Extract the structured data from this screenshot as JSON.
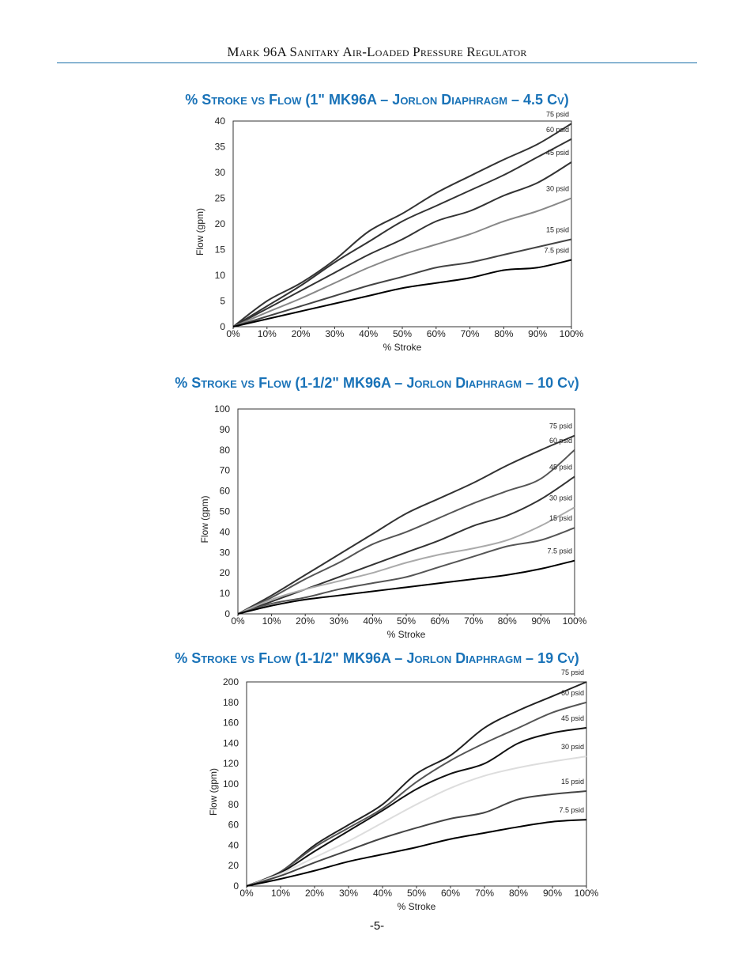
{
  "header": {
    "title": "Mark 96A Sanitary Air-Loaded Pressure Regulator"
  },
  "page_number": "-5-",
  "colors": {
    "accent": "#1a73b8",
    "rule": "#1a6fa8"
  },
  "chart_data": [
    {
      "type": "line",
      "title": "% Stroke vs Flow (1\" MK96A – Jorlon Diaphragm – 4.5 Cv)",
      "xlabel": "% Stroke",
      "ylabel": "Flow (gpm)",
      "xlim": [
        0,
        100
      ],
      "ylim": [
        0,
        40
      ],
      "x_ticks": [
        "0%",
        "10%",
        "20%",
        "30%",
        "40%",
        "50%",
        "60%",
        "70%",
        "80%",
        "90%",
        "100%"
      ],
      "y_ticks": [
        "0",
        "5",
        "10",
        "15",
        "20",
        "25",
        "30",
        "35",
        "40"
      ],
      "grid": false,
      "x": [
        0,
        10,
        20,
        30,
        40,
        50,
        60,
        70,
        80,
        90,
        100
      ],
      "series": [
        {
          "name": "75 psid",
          "color": "#333333",
          "values": [
            0,
            5,
            8.5,
            13,
            18.5,
            22,
            26,
            29.3,
            32.5,
            35.5,
            39.5
          ]
        },
        {
          "name": "60 psid",
          "color": "#333333",
          "values": [
            0,
            4,
            8,
            12.5,
            16.5,
            20.5,
            23.5,
            26.5,
            29.5,
            33,
            36.5
          ]
        },
        {
          "name": "45 psid",
          "color": "#333333",
          "values": [
            0,
            3.5,
            7,
            10.5,
            14,
            17,
            20.5,
            22.5,
            25.5,
            28,
            32
          ]
        },
        {
          "name": "30 psid",
          "color": "#888888",
          "values": [
            0,
            2.8,
            5.5,
            8.5,
            11.5,
            14,
            16,
            18,
            20.5,
            22.5,
            25
          ]
        },
        {
          "name": "15 psid",
          "color": "#444444",
          "values": [
            0,
            2,
            4,
            6,
            8,
            9.7,
            11.5,
            12.5,
            14,
            15.5,
            17
          ]
        },
        {
          "name": "7.5 psid",
          "color": "#000000",
          "values": [
            0,
            1.5,
            3,
            4.5,
            6,
            7.5,
            8.5,
            9.5,
            11,
            11.5,
            13
          ]
        }
      ]
    },
    {
      "type": "line",
      "title": "% Stroke vs Flow (1-1/2\" MK96A – Jorlon Diaphragm – 10 Cv)",
      "xlabel": "% Stroke",
      "ylabel": "Flow (gpm)",
      "xlim": [
        0,
        100
      ],
      "ylim": [
        0,
        100
      ],
      "x_ticks": [
        "0%",
        "10%",
        "20%",
        "30%",
        "40%",
        "50%",
        "60%",
        "70%",
        "80%",
        "90%",
        "100%"
      ],
      "y_ticks": [
        "0",
        "10",
        "20",
        "30",
        "40",
        "50",
        "60",
        "70",
        "80",
        "90",
        "100"
      ],
      "grid": false,
      "x": [
        0,
        10,
        20,
        30,
        40,
        50,
        60,
        70,
        80,
        90,
        100
      ],
      "series": [
        {
          "name": "75 psid",
          "color": "#333333",
          "values": [
            0,
            9,
            19,
            29,
            39,
            49,
            56.5,
            64,
            72.5,
            80,
            87
          ]
        },
        {
          "name": "60 psid",
          "color": "#555555",
          "values": [
            0,
            8,
            17,
            25,
            34,
            40,
            47,
            54,
            60,
            66,
            80
          ]
        },
        {
          "name": "45 psid",
          "color": "#333333",
          "values": [
            0,
            6,
            12,
            18,
            24,
            30,
            36,
            43,
            48,
            56,
            67
          ]
        },
        {
          "name": "30 psid",
          "color": "#aaaaaa",
          "values": [
            0,
            7,
            12,
            16,
            20,
            25,
            29,
            32,
            36,
            43,
            52
          ]
        },
        {
          "name": "15 psid",
          "color": "#555555",
          "values": [
            0,
            5,
            8,
            12,
            15,
            18,
            23,
            28,
            33,
            36,
            42
          ]
        },
        {
          "name": "7.5 psid",
          "color": "#000000",
          "values": [
            0,
            4,
            7,
            9,
            11,
            13,
            15,
            17,
            19,
            22,
            26
          ]
        }
      ]
    },
    {
      "type": "line",
      "title": "% Stroke vs Flow (1-1/2\" MK96A – Jorlon Diaphragm – 19 Cv)",
      "xlabel": "% Stroke",
      "ylabel": "Flow (gpm)",
      "xlim": [
        0,
        100
      ],
      "ylim": [
        0,
        200
      ],
      "x_ticks": [
        "0%",
        "10%",
        "20%",
        "30%",
        "40%",
        "50%",
        "60%",
        "70%",
        "80%",
        "90%",
        "100%"
      ],
      "y_ticks": [
        "0",
        "20",
        "40",
        "60",
        "80",
        "100",
        "120",
        "140",
        "160",
        "180",
        "200"
      ],
      "grid": false,
      "x": [
        0,
        10,
        20,
        30,
        40,
        50,
        60,
        70,
        80,
        90,
        100
      ],
      "series": [
        {
          "name": "75 psid",
          "color": "#222222",
          "values": [
            0,
            14,
            40,
            60,
            80,
            110,
            128,
            155,
            172,
            186,
            200
          ]
        },
        {
          "name": "60 psid",
          "color": "#555555",
          "values": [
            0,
            14,
            38,
            57,
            76,
            102,
            123,
            140,
            155,
            170,
            180
          ]
        },
        {
          "name": "45 psid",
          "color": "#111111",
          "values": [
            0,
            13,
            34,
            54,
            74,
            95,
            110,
            120,
            140,
            150,
            155
          ]
        },
        {
          "name": "30 psid",
          "color": "#dddddd",
          "values": [
            0,
            12,
            28,
            44,
            62,
            80,
            96,
            108,
            116,
            122,
            127
          ]
        },
        {
          "name": "15 psid",
          "color": "#444444",
          "values": [
            0,
            10,
            23,
            35,
            47,
            57,
            66,
            72,
            85,
            90,
            93
          ]
        },
        {
          "name": "7.5 psid",
          "color": "#000000",
          "values": [
            0,
            7,
            15,
            24,
            31,
            38,
            46,
            52,
            58,
            63,
            65
          ]
        }
      ]
    }
  ]
}
